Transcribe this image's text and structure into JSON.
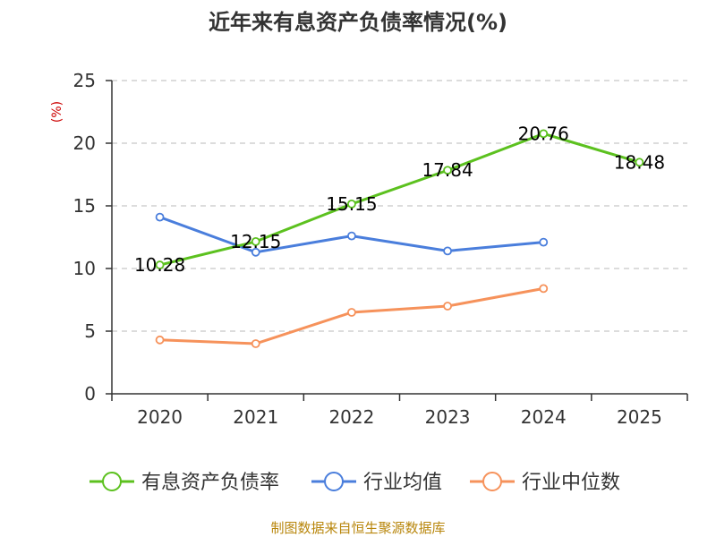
{
  "chart_data": {
    "type": "line",
    "title": "近年来有息资产负债率情况(%)",
    "ylabel": "(%)",
    "xlabel": "",
    "categories": [
      "2020",
      "2021",
      "2022",
      "2023",
      "2024",
      "2025"
    ],
    "ylim": [
      0,
      25
    ],
    "yticks": [
      0,
      5,
      10,
      15,
      20,
      25
    ],
    "grid": true,
    "legend_position": "bottom",
    "series": [
      {
        "name": "有息资产负债率",
        "color": "#5cc11f",
        "values": [
          10.28,
          12.15,
          15.15,
          17.84,
          20.76,
          18.48
        ],
        "data_labels": [
          "10.28",
          "12.15",
          "15.15",
          "17.84",
          "20.76",
          "18.48"
        ]
      },
      {
        "name": "行业均值",
        "color": "#4a7edc",
        "values": [
          14.1,
          11.3,
          12.6,
          11.4,
          12.1,
          null
        ]
      },
      {
        "name": "行业中位数",
        "color": "#f6925b",
        "values": [
          4.3,
          4.0,
          6.5,
          7.0,
          8.4,
          null
        ]
      }
    ]
  },
  "source": "制图数据来自恒生聚源数据库"
}
